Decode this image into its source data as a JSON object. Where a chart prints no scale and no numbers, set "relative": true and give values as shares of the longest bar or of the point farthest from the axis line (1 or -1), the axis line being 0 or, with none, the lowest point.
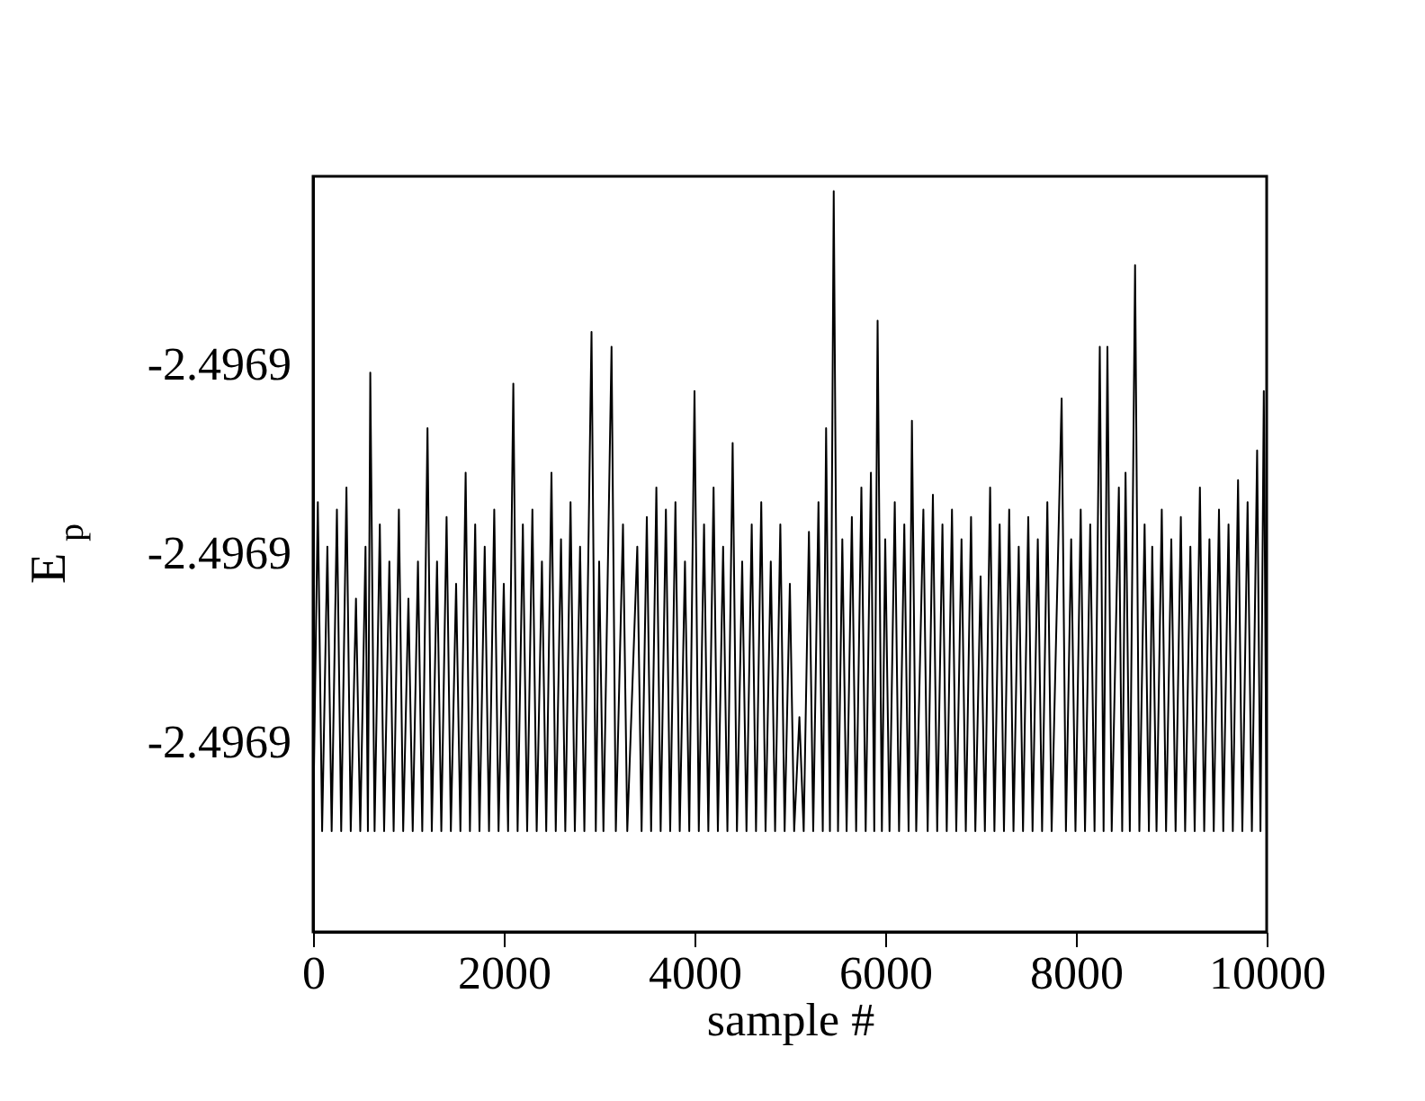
{
  "chart_data": {
    "type": "line",
    "relative": true,
    "xlabel": "sample #",
    "ylabel": "E$_{p}$",
    "annotations": [
      "-2.4969",
      "-2.4969",
      "-2.4969"
    ],
    "xlim": [
      0,
      10000
    ],
    "xticks": [
      0,
      2000,
      4000,
      6000,
      8000,
      10000
    ],
    "grid": false,
    "marker": "none",
    "line_style": "solid",
    "series": [
      {
        "color": "#000000",
        "x": [
          0,
          50,
          95,
          150,
          195,
          250,
          295,
          350,
          395,
          450,
          495,
          550,
          575,
          600,
          645,
          700,
          745,
          800,
          845,
          900,
          945,
          1000,
          1045,
          1100,
          1145,
          1200,
          1245,
          1300,
          1345,
          1400,
          1445,
          1500,
          1545,
          1600,
          1645,
          1700,
          1745,
          1800,
          1845,
          1900,
          1945,
          2000,
          2045,
          2100,
          2145,
          2200,
          2245,
          2300,
          2345,
          2400,
          2445,
          2500,
          2545,
          2600,
          2645,
          2700,
          2745,
          2800,
          2845,
          2920,
          2965,
          3000,
          3045,
          3130,
          3175,
          3250,
          3295,
          3400,
          3445,
          3500,
          3545,
          3600,
          3645,
          3700,
          3745,
          3800,
          3845,
          3900,
          3945,
          4000,
          4045,
          4100,
          4145,
          4200,
          4245,
          4300,
          4345,
          4400,
          4445,
          4500,
          4545,
          4600,
          4645,
          4700,
          4745,
          4800,
          4845,
          4900,
          4945,
          5000,
          5045,
          5100,
          5145,
          5200,
          5245,
          5300,
          5345,
          5380,
          5420,
          5460,
          5505,
          5550,
          5595,
          5650,
          5695,
          5750,
          5795,
          5850,
          5885,
          5920,
          5965,
          6000,
          6045,
          6100,
          6145,
          6200,
          6245,
          6280,
          6325,
          6400,
          6445,
          6500,
          6545,
          6600,
          6645,
          6700,
          6745,
          6800,
          6845,
          6900,
          6945,
          7000,
          7045,
          7100,
          7145,
          7200,
          7245,
          7300,
          7345,
          7400,
          7445,
          7500,
          7545,
          7600,
          7645,
          7700,
          7745,
          7850,
          7895,
          7950,
          7995,
          8050,
          8095,
          8150,
          8195,
          8250,
          8290,
          8330,
          8375,
          8450,
          8485,
          8520,
          8565,
          8620,
          8665,
          8720,
          8765,
          8800,
          8845,
          8900,
          8945,
          9000,
          9045,
          9100,
          9145,
          9200,
          9245,
          9300,
          9345,
          9400,
          9445,
          9500,
          9545,
          9600,
          9645,
          9700,
          9745,
          9800,
          9845,
          9900,
          9935,
          9970,
          10000
        ],
        "values": [
          0.136,
          0.58,
          0.136,
          0.52,
          0.136,
          0.57,
          0.136,
          0.6,
          0.136,
          0.45,
          0.136,
          0.52,
          0.136,
          0.755,
          0.136,
          0.55,
          0.136,
          0.5,
          0.136,
          0.57,
          0.136,
          0.45,
          0.136,
          0.5,
          0.136,
          0.68,
          0.136,
          0.5,
          0.136,
          0.56,
          0.136,
          0.47,
          0.136,
          0.62,
          0.136,
          0.55,
          0.136,
          0.52,
          0.136,
          0.57,
          0.136,
          0.47,
          0.136,
          0.74,
          0.136,
          0.55,
          0.136,
          0.57,
          0.136,
          0.5,
          0.136,
          0.62,
          0.136,
          0.53,
          0.136,
          0.58,
          0.136,
          0.52,
          0.136,
          0.81,
          0.136,
          0.5,
          0.136,
          0.79,
          0.136,
          0.55,
          0.136,
          0.52,
          0.136,
          0.56,
          0.136,
          0.6,
          0.136,
          0.57,
          0.136,
          0.58,
          0.136,
          0.5,
          0.136,
          0.73,
          0.136,
          0.55,
          0.136,
          0.6,
          0.136,
          0.52,
          0.136,
          0.66,
          0.136,
          0.5,
          0.136,
          0.55,
          0.136,
          0.58,
          0.136,
          0.5,
          0.136,
          0.55,
          0.136,
          0.47,
          0.136,
          0.29,
          0.136,
          0.54,
          0.136,
          0.58,
          0.136,
          0.68,
          0.136,
          1.0,
          0.136,
          0.53,
          0.136,
          0.56,
          0.136,
          0.6,
          0.136,
          0.62,
          0.136,
          0.825,
          0.136,
          0.53,
          0.136,
          0.58,
          0.136,
          0.55,
          0.136,
          0.69,
          0.136,
          0.57,
          0.136,
          0.59,
          0.136,
          0.55,
          0.136,
          0.57,
          0.136,
          0.53,
          0.136,
          0.56,
          0.136,
          0.48,
          0.136,
          0.6,
          0.136,
          0.55,
          0.136,
          0.57,
          0.136,
          0.52,
          0.136,
          0.56,
          0.136,
          0.53,
          0.136,
          0.58,
          0.136,
          0.72,
          0.136,
          0.53,
          0.136,
          0.57,
          0.136,
          0.55,
          0.136,
          0.79,
          0.136,
          0.79,
          0.136,
          0.6,
          0.136,
          0.62,
          0.136,
          0.9,
          0.136,
          0.55,
          0.136,
          0.52,
          0.136,
          0.57,
          0.136,
          0.53,
          0.136,
          0.56,
          0.136,
          0.52,
          0.136,
          0.6,
          0.136,
          0.53,
          0.136,
          0.57,
          0.136,
          0.55,
          0.136,
          0.61,
          0.136,
          0.58,
          0.136,
          0.65,
          0.136,
          0.73,
          0.136
        ]
      }
    ]
  }
}
